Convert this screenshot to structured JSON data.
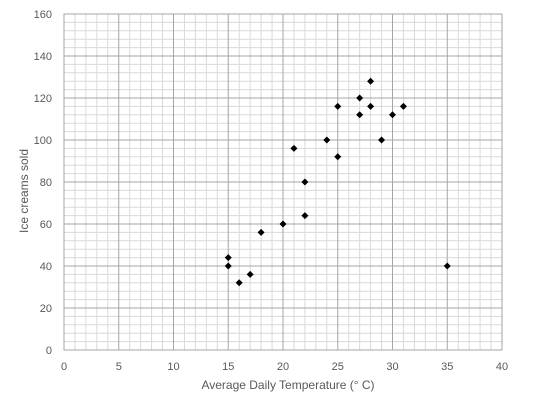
{
  "chart_data": {
    "type": "scatter",
    "title": "",
    "xlabel": "Average Daily Temperature (° C)",
    "ylabel": "Ice creams sold",
    "xlim": [
      0,
      40
    ],
    "ylim": [
      0,
      160
    ],
    "x_ticks": [
      0,
      5,
      10,
      15,
      20,
      25,
      30,
      35,
      40
    ],
    "y_ticks": [
      0,
      20,
      40,
      60,
      80,
      100,
      120,
      140,
      160
    ],
    "x_tick_labels": [
      "0",
      "5",
      "10",
      "15",
      "20",
      "25",
      "30",
      "35",
      "40"
    ],
    "y_tick_labels": [
      "0",
      "20",
      "40",
      "60",
      "80",
      "100",
      "120",
      "140",
      "160"
    ],
    "grid": true,
    "minor_grid": true,
    "marker": "diamond",
    "colors": {
      "marker": "#000000",
      "major_grid": "#a6a6a6",
      "minor_grid": "#d9d9d9",
      "text": "#595959"
    },
    "series": [
      {
        "points": [
          {
            "x": 15,
            "y": 44
          },
          {
            "x": 15,
            "y": 40
          },
          {
            "x": 16,
            "y": 32
          },
          {
            "x": 17,
            "y": 36
          },
          {
            "x": 18,
            "y": 56
          },
          {
            "x": 20,
            "y": 60
          },
          {
            "x": 21,
            "y": 96
          },
          {
            "x": 22,
            "y": 80
          },
          {
            "x": 22,
            "y": 64
          },
          {
            "x": 24,
            "y": 100
          },
          {
            "x": 25,
            "y": 116
          },
          {
            "x": 25,
            "y": 92
          },
          {
            "x": 27,
            "y": 120
          },
          {
            "x": 27,
            "y": 112
          },
          {
            "x": 28,
            "y": 128
          },
          {
            "x": 28,
            "y": 116
          },
          {
            "x": 29,
            "y": 100
          },
          {
            "x": 30,
            "y": 112
          },
          {
            "x": 31,
            "y": 116
          },
          {
            "x": 35,
            "y": 40
          }
        ]
      }
    ]
  }
}
